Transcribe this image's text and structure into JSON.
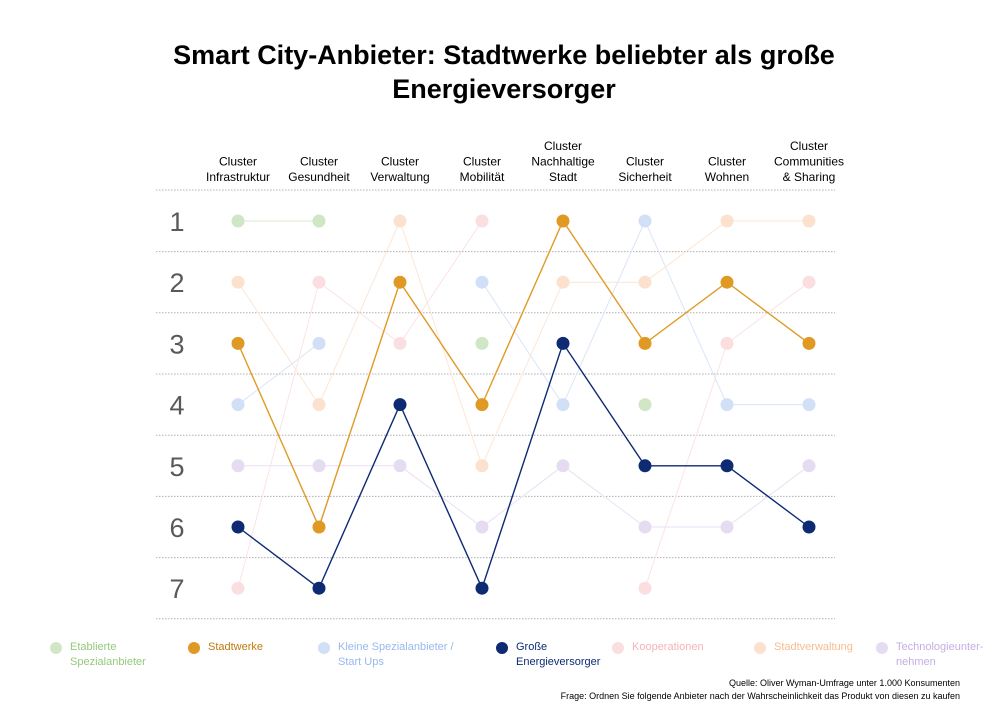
{
  "title_lines": [
    "Smart City-Anbieter: Stadtwerke beliebter als große",
    "Energieversorger"
  ],
  "chart_data": {
    "type": "line",
    "categories": [
      "Cluster\nInfrastruktur",
      "Cluster\nGesundheit",
      "Cluster\nVerwaltung",
      "Cluster\nMobilität",
      "Cluster\nNachhaltige\nStadt",
      "Cluster\nSicherheit",
      "Cluster\nWohnen",
      "Cluster\nCommunities\n& Sharing"
    ],
    "y_ticks": [
      "1",
      "2",
      "3",
      "4",
      "5",
      "6",
      "7"
    ],
    "ylim": [
      1,
      7
    ],
    "y_inverted": true,
    "series": [
      {
        "name": "Etablierte\nSpezialanbieter",
        "color": "#7aba5d",
        "highlight": false,
        "values": [
          1,
          1,
          null,
          3,
          null,
          4,
          null,
          null
        ]
      },
      {
        "name": "Stadtwerke",
        "color": "#e09a24",
        "highlight": true,
        "values": [
          3,
          6,
          2,
          4,
          1,
          3,
          2,
          3
        ]
      },
      {
        "name": "Kleine Spezialanbieter /\nStart Ups",
        "color": "#7fa7e8",
        "highlight": false,
        "values": [
          4,
          3,
          null,
          2,
          4,
          1,
          4,
          4
        ]
      },
      {
        "name": "Große\nEnergieversorger",
        "color": "#0d2a73",
        "highlight": true,
        "values": [
          6,
          7,
          4,
          7,
          3,
          5,
          5,
          6
        ]
      },
      {
        "name": "Kooperationen",
        "color": "#f3a0a4",
        "highlight": false,
        "values": [
          7,
          2,
          3,
          1,
          null,
          7,
          3,
          2
        ]
      },
      {
        "name": "Stadtverwaltung",
        "color": "#f5ad73",
        "highlight": false,
        "values": [
          2,
          4,
          1,
          5,
          2,
          2,
          1,
          1
        ]
      },
      {
        "name": "Technologieunter-\nnehmen",
        "color": "#b59bd9",
        "highlight": false,
        "values": [
          5,
          5,
          5,
          6,
          5,
          6,
          6,
          5
        ]
      }
    ]
  },
  "source_lines": [
    "Quelle: Oliver Wyman-Umfrage unter 1.000 Konsumenten",
    "Frage: Ordnen Sie folgende Anbieter nach der Wahrscheinlichkeit das Produkt von diesen zu kaufen"
  ]
}
